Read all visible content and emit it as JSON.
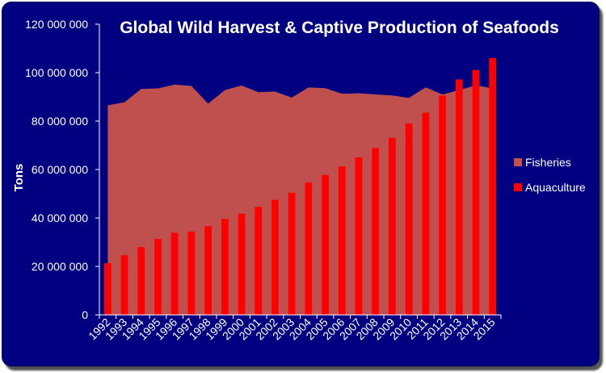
{
  "chart_data": {
    "type": "bar",
    "title": "Global Wild Harvest & Captive Production of Seafoods",
    "xlabel": "",
    "ylabel": "Tons",
    "ylim": [
      0,
      120000000
    ],
    "yticks": [
      0,
      20000000,
      40000000,
      60000000,
      80000000,
      100000000,
      120000000
    ],
    "ytick_labels": [
      "0",
      "20 000 000",
      "40 000 000",
      "60 000 000",
      "80 000 000",
      "100 000 000",
      "120 000 000"
    ],
    "categories": [
      "1992",
      "1993",
      "1994",
      "1995",
      "1996",
      "1997",
      "1998",
      "1999",
      "2000",
      "2001",
      "2002",
      "2003",
      "2004",
      "2005",
      "2006",
      "2007",
      "2008",
      "2009",
      "2010",
      "2011",
      "2012",
      "2013",
      "2014",
      "2015"
    ],
    "series": [
      {
        "name": "Fisheries",
        "type": "area",
        "color": "#c0504d",
        "values": [
          86500000,
          87800000,
          93300000,
          93500000,
          95100000,
          94500000,
          87200000,
          92800000,
          94700000,
          91900000,
          92200000,
          89700000,
          93900000,
          93600000,
          91300000,
          91500000,
          91000000,
          90600000,
          89600000,
          93900000,
          91000000,
          92800000,
          94800000,
          93500000
        ]
      },
      {
        "name": "Aquaculture",
        "type": "bar",
        "color": "#ff0000",
        "values": [
          21300000,
          24600000,
          28000000,
          31300000,
          33900000,
          34400000,
          36600000,
          39600000,
          41800000,
          44600000,
          47500000,
          50400000,
          54600000,
          57800000,
          61300000,
          65000000,
          68900000,
          73100000,
          79000000,
          83500000,
          90500000,
          97200000,
          101100000,
          106000000
        ]
      }
    ],
    "legend_position": "right",
    "grid": false
  },
  "colors": {
    "background": "#000080",
    "axis": "#ffffff",
    "text": "#ffffff"
  }
}
